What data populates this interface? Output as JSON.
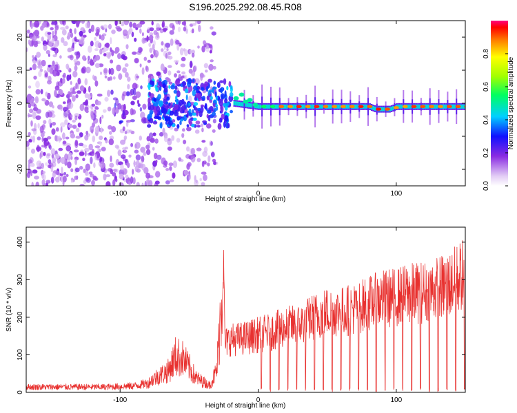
{
  "title": "S196.2025.292.08.45.R08",
  "colors": {
    "line": "#e8312f",
    "background": "#ffffff",
    "axis": "#000000"
  },
  "chart_data": [
    {
      "type": "heatmap",
      "xlabel": "Height of straight line (km)",
      "ylabel": "Frequency (Hz)",
      "xlim": [
        -168,
        150
      ],
      "ylim": [
        -25,
        25
      ],
      "xticks": [
        -100,
        0,
        100
      ],
      "yticks": [
        -20,
        -10,
        0,
        10,
        20
      ],
      "xtick_labels": [
        "-100",
        "0",
        "100"
      ],
      "ytick_labels": [
        "-20",
        "-10",
        "0",
        "10",
        "20"
      ],
      "ridge": {
        "x": [
          -18,
          0,
          40,
          80,
          85,
          95,
          100,
          150
        ],
        "freq": [
          0,
          -1,
          -1,
          -1,
          -1.8,
          -1.8,
          -1,
          -1
        ],
        "peak_amplitude": 1.0
      },
      "noise_region_x": [
        -168,
        -30
      ],
      "colorbar": {
        "label": "Normalized spectral amplitude",
        "ticks": [
          0.0,
          0.2,
          0.4,
          0.6,
          0.8
        ],
        "tick_labels": [
          "0.0",
          "0.2",
          "0.4",
          "0.6",
          "0.8"
        ],
        "range": [
          0,
          1
        ]
      }
    },
    {
      "type": "line",
      "xlabel": "Height of straight line (km)",
      "ylabel": "SNR (10 * v/v)",
      "xlim": [
        -168,
        150
      ],
      "ylim": [
        0,
        440
      ],
      "xticks": [
        -100,
        0,
        100
      ],
      "yticks": [
        0,
        100,
        200,
        300,
        400
      ],
      "xtick_labels": [
        "-100",
        "0",
        "100"
      ],
      "ytick_labels": [
        "0",
        "100",
        "200",
        "300",
        "400"
      ],
      "series": [
        {
          "name": "SNR",
          "x": [
            -168,
            -140,
            -110,
            -90,
            -80,
            -75,
            -70,
            -65,
            -60,
            -55,
            -50,
            -45,
            -40,
            -35,
            -30,
            -26,
            -25,
            -24,
            -20,
            -10,
            0,
            10,
            20,
            30,
            40,
            50,
            60,
            70,
            80,
            90,
            100,
            110,
            120,
            130,
            140,
            145,
            150
          ],
          "y": [
            15,
            15,
            15,
            18,
            25,
            40,
            50,
            60,
            100,
            95,
            70,
            40,
            30,
            20,
            60,
            300,
            400,
            150,
            160,
            165,
            175,
            185,
            200,
            205,
            230,
            245,
            245,
            255,
            270,
            285,
            290,
            300,
            305,
            315,
            330,
            350,
            360
          ]
        }
      ]
    }
  ]
}
